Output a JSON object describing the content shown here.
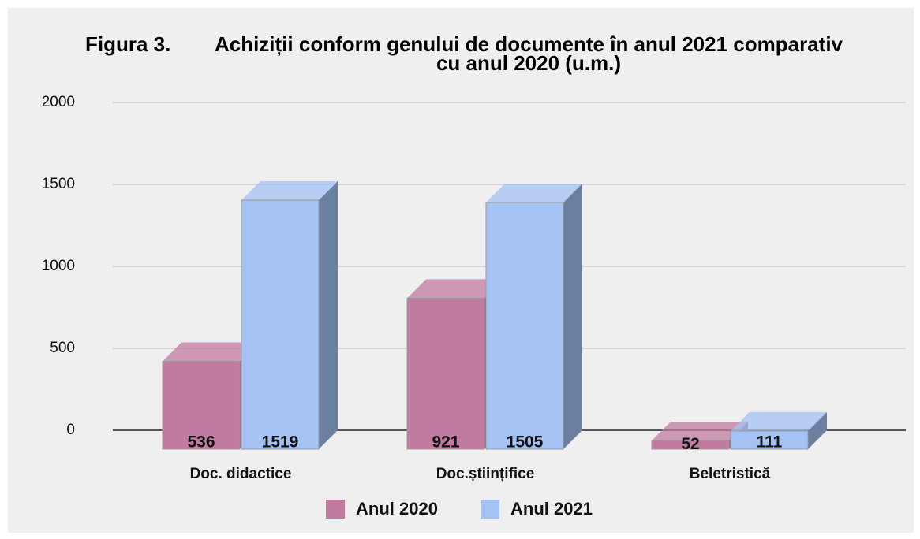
{
  "chart_data": {
    "type": "bar3d",
    "figure_label": "Figura 3.",
    "title": "Achiziții conform genului de documente în anul 2021 comparativ cu anul 2020 (u.m.)",
    "categories": [
      "Doc. didactice",
      "Doc.științifice",
      "Beletristică"
    ],
    "series": [
      {
        "name": "Anul 2020",
        "color": "#c27ba0",
        "side_color": "#9c5c7e",
        "values": [
          536,
          921,
          52
        ]
      },
      {
        "name": "Anul 2021",
        "color": "#a4c2f4",
        "side_color": "#6b7fa0",
        "values": [
          1519,
          1505,
          111
        ]
      }
    ],
    "ylim": [
      0,
      2000
    ],
    "yticks": [
      0,
      500,
      1000,
      1500,
      2000
    ],
    "grid": true,
    "legend": "bottom"
  }
}
